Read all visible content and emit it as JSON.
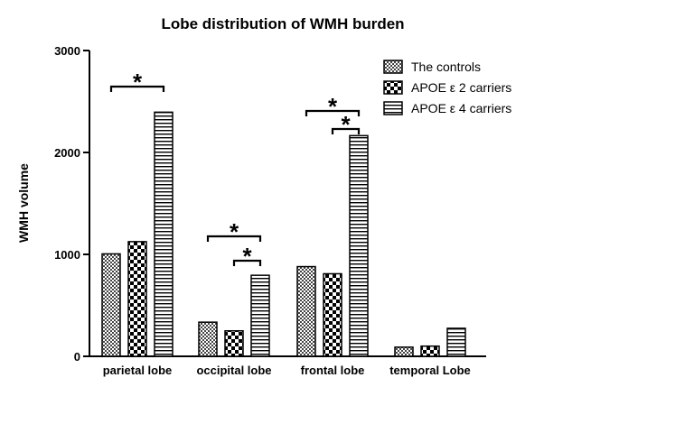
{
  "chart_data": {
    "type": "bar",
    "title": "Lobe distribution of WMH burden",
    "xlabel": "",
    "ylabel": "WMH volume",
    "ylim": [
      0,
      3000
    ],
    "yticks": [
      "0",
      "1000",
      "2000",
      "3000"
    ],
    "grid": false,
    "legend_position": "top-right",
    "categories": [
      "parietal lobe",
      "occipital lobe",
      "frontal lobe",
      "temporal Lobe"
    ],
    "series": [
      {
        "name": "The controls",
        "pattern": "fine-crosshatch",
        "values": [
          1005,
          335,
          880,
          90
        ]
      },
      {
        "name": "APOE ε 2 carriers",
        "pattern": "checkerboard",
        "values": [
          1125,
          250,
          810,
          100
        ]
      },
      {
        "name": "APOE ε 4 carriers",
        "pattern": "horizontal-lines",
        "values": [
          2395,
          795,
          2165,
          275
        ]
      }
    ],
    "significance": [
      {
        "category": 0,
        "from_series": 0,
        "to_series": 2,
        "label": "*"
      },
      {
        "category": 1,
        "from_series": 0,
        "to_series": 2,
        "label": "*"
      },
      {
        "category": 1,
        "from_series": 1,
        "to_series": 2,
        "label": "*"
      },
      {
        "category": 2,
        "from_series": 0,
        "to_series": 2,
        "label": "*"
      },
      {
        "category": 2,
        "from_series": 1,
        "to_series": 2,
        "label": "*"
      }
    ],
    "colors": {
      "bar_stroke": "#000000",
      "background": "#ffffff"
    }
  }
}
